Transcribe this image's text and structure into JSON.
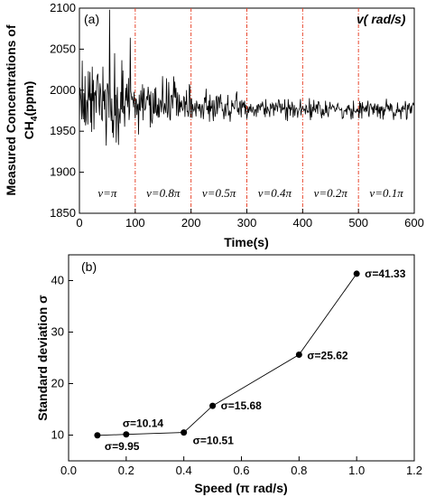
{
  "chart_data": [
    {
      "type": "line",
      "panel_label": "(a)",
      "xlabel": "Time(s)",
      "ylabel_line1": "Measured Concentrations of",
      "ylabel_line2": "CH",
      "ylabel_sub": "4",
      "ylabel_tail": "(ppm)",
      "xlim": [
        0,
        600
      ],
      "ylim": [
        1850,
        2100
      ],
      "xticks": [
        0,
        100,
        200,
        300,
        400,
        500,
        600
      ],
      "yticks": [
        1850,
        1900,
        1950,
        2000,
        2050,
        2100
      ],
      "xtick_labels": [
        "0",
        "100",
        "200",
        "300",
        "400",
        "500",
        "600"
      ],
      "ytick_labels": [
        "1850",
        "1900",
        "1950",
        "2000",
        "2050",
        "2100"
      ],
      "legend_text": "v( rad/s)",
      "divider_x": [
        100,
        200,
        300,
        400,
        500
      ],
      "divider_color": "#e8452c",
      "segments": [
        {
          "label": "v=π",
          "x_start": 0,
          "x_end": 100,
          "mean": 1985,
          "amplitude": 42
        },
        {
          "label": "v=0.8π",
          "x_start": 100,
          "x_end": 200,
          "mean": 1982,
          "amplitude": 28
        },
        {
          "label": "v=0.5π",
          "x_start": 200,
          "x_end": 300,
          "mean": 1980,
          "amplitude": 20
        },
        {
          "label": "v=0.4π",
          "x_start": 300,
          "x_end": 400,
          "mean": 1978,
          "amplitude": 11
        },
        {
          "label": "v=0.2π",
          "x_start": 400,
          "x_end": 500,
          "mean": 1977,
          "amplitude": 10
        },
        {
          "label": "v=0.1π",
          "x_start": 500,
          "x_end": 600,
          "mean": 1976,
          "amplitude": 10
        }
      ]
    },
    {
      "type": "line",
      "panel_label": "(b)",
      "xlabel": "Speed (π rad/s)",
      "ylabel": "Standard deviation σ",
      "xlim": [
        0.0,
        1.2
      ],
      "ylim": [
        5,
        45
      ],
      "xticks": [
        0.0,
        0.2,
        0.4,
        0.6,
        0.8,
        1.0,
        1.2
      ],
      "yticks": [
        10,
        20,
        30,
        40
      ],
      "xtick_labels": [
        "0.0",
        "0.2",
        "0.4",
        "0.6",
        "0.8",
        "1.0",
        "1.2"
      ],
      "ytick_labels": [
        "10",
        "20",
        "30",
        "40"
      ],
      "x": [
        0.1,
        0.2,
        0.4,
        0.5,
        0.8,
        1.0
      ],
      "y": [
        9.95,
        10.14,
        10.51,
        15.68,
        25.62,
        41.33
      ],
      "labels": [
        "σ=9.95",
        "σ=10.14",
        "σ=10.51",
        "σ=15.68",
        "σ=25.62",
        "σ=41.33"
      ],
      "label_colors": [
        "#000000",
        "#000000",
        "#e8202a",
        "#000000",
        "#000000",
        "#000000"
      ]
    }
  ]
}
